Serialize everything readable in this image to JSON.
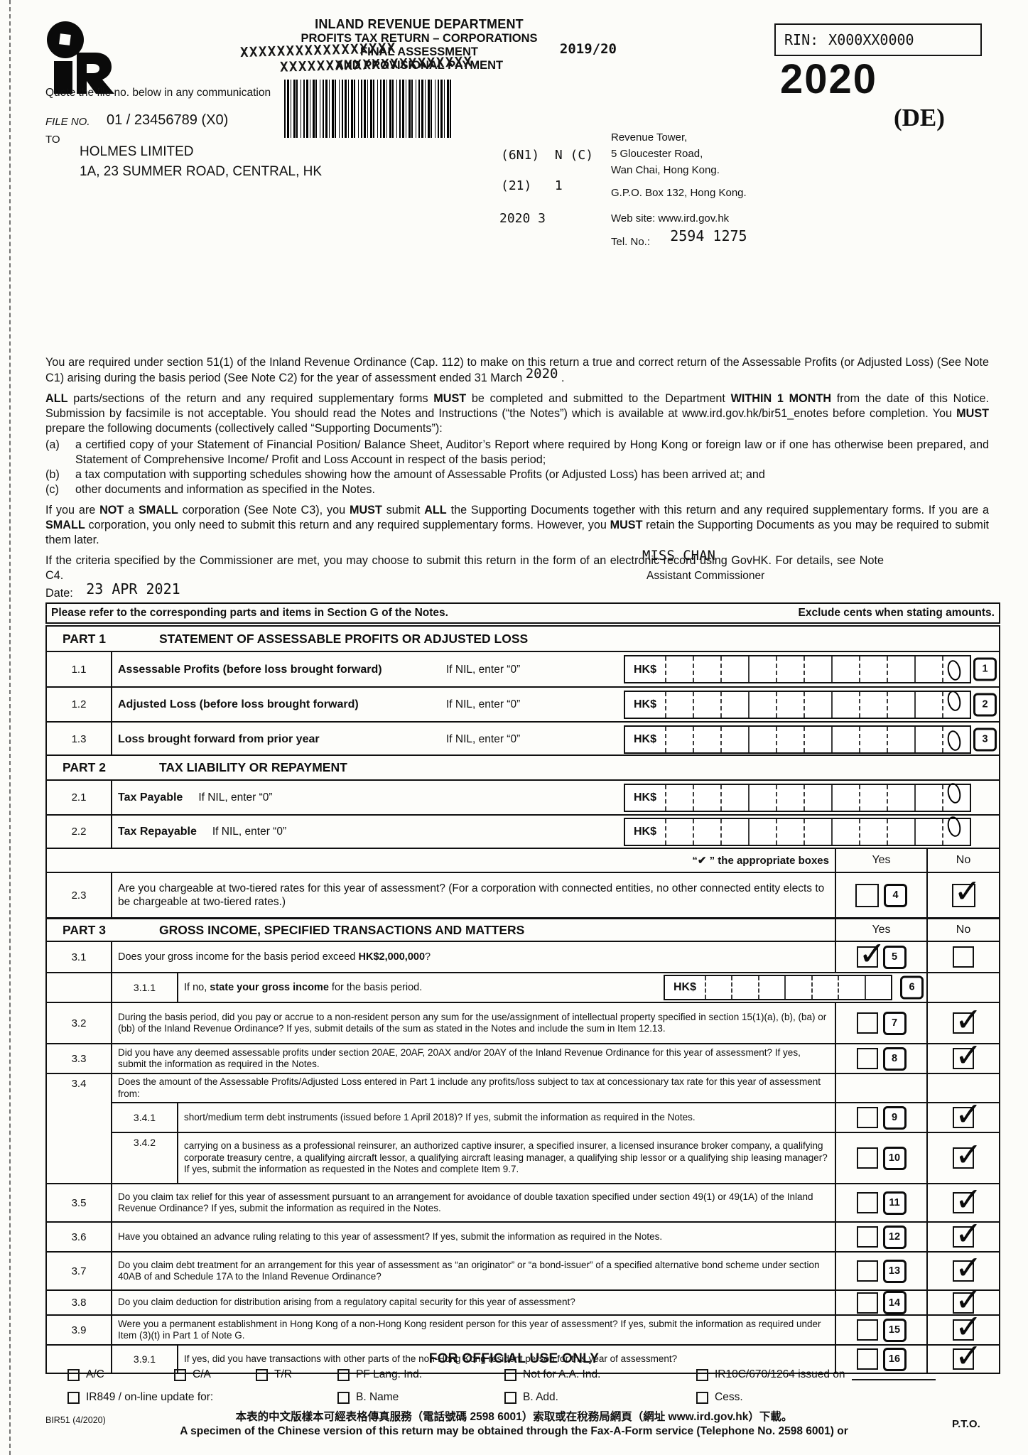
{
  "header": {
    "title1": "INLAND REVENUE DEPARTMENT",
    "title2": "PROFITS TAX RETURN – CORPORATIONS",
    "title3": "FINAL ASSESSMENT",
    "title4": "AND PROVISIONAL PAYMENT",
    "strike1": "XXXXXXXXXXXXXXXXX",
    "strike2": "XXXXXXXXXXXXXXXXXXXXX",
    "typed_period": "2019/20",
    "rin_label": "RIN:",
    "rin_value": "X000XX0000",
    "year_big": "2020",
    "edition": "(DE)",
    "quote_line": "Quote the file no. below in any communication",
    "file_no_label": "FILE NO.",
    "file_no_value": "01 / 23456789 (X0)",
    "to_label": "TO",
    "recipient_name": "HOLMES LIMITED",
    "recipient_address": "1A, 23 SUMMER ROAD, CENTRAL, HK",
    "code1": "(6N1)  N (C)",
    "code2": "(21)   1",
    "code3": "2020 3",
    "ird_address1": "Revenue Tower,",
    "ird_address2": "5 Gloucester Road,",
    "ird_address3": "Wan Chai, Hong Kong.",
    "ird_address4": "G.P.O. Box 132, Hong Kong.",
    "website": "Web site: www.ird.gov.hk",
    "tel_label": "Tel. No.:",
    "tel_value": "2594 1275"
  },
  "intro": {
    "p1": "You are required under section 51(1) of the Inland Revenue Ordinance (Cap. 112) to make on this return a true and correct return of the Assessable Profits (or Adjusted Loss) (See Note C1) arising during the basis period (See Note C2) for the year of assessment ended 31 March",
    "p1_year": "2020",
    "p1_tail": ".",
    "p2": [
      {
        "b": "ALL"
      },
      " parts/sections of the return and any required supplementary forms ",
      {
        "b": "MUST"
      },
      " be completed and submitted to the Department ",
      {
        "b": "WITHIN 1 MONTH"
      },
      " from the date of this Notice.  Submission by facsimile is not acceptable.  You should read the Notes and Instructions (“the Notes”) which is available at www.ird.gov.hk/bir51_enotes before completion.  You ",
      {
        "b": "MUST"
      },
      " prepare the following documents (collectively called “Supporting Documents”):"
    ],
    "item_a_label": "(a)",
    "item_a": "a certified copy of your Statement of Financial Position/ Balance Sheet, Auditor’s Report where required by Hong Kong or foreign law or if one has otherwise been prepared, and Statement of Comprehensive Income/ Profit and Loss Account in respect of the basis period;",
    "item_b_label": "(b)",
    "item_b": "a tax computation with supporting schedules showing how the amount of Assessable Profits (or Adjusted Loss) has been arrived at; and",
    "item_c_label": "(c)",
    "item_c": "other documents and information as specified in the Notes.",
    "p3": [
      "If you are ",
      {
        "b": "NOT"
      },
      " a ",
      {
        "b": "SMALL"
      },
      " corporation (See Note C3), you ",
      {
        "b": "MUST"
      },
      " submit ",
      {
        "b": "ALL"
      },
      " the Supporting Documents together with this return and any required supplementary forms.  If you are a ",
      {
        "b": "SMALL"
      },
      " corporation, you only need to submit this return and any required supplementary forms.  However, you ",
      {
        "b": "MUST"
      },
      " retain the Supporting Documents as you may be required to submit them later."
    ],
    "p4": "If the criteria specified by the Commissioner are met, you may choose to submit this return in the form of an electronic record using GovHK. For details, see Note C4.",
    "date_label": "Date:",
    "date_value": "23 APR 2021",
    "signer_name": "MISS CHAN",
    "signer_title": "Assistant Commissioner"
  },
  "bar": {
    "left": "Please refer to the corresponding parts and items in Section G of the Notes.",
    "right": "Exclude cents when stating amounts."
  },
  "part1": {
    "no": "PART 1",
    "title": "STATEMENT OF ASSESSABLE PROFITS OR ADJUSTED LOSS",
    "currency": "HK$",
    "rows": [
      {
        "num": "1.1",
        "label": "Assessable Profits (before loss brought forward)",
        "note": "If NIL, enter “0”",
        "box_no": "1",
        "value": "0"
      },
      {
        "num": "1.2",
        "label": "Adjusted Loss (before loss brought forward)",
        "note": "If NIL, enter “0”",
        "box_no": "2",
        "value": "0"
      },
      {
        "num": "1.3",
        "label": "Loss brought forward from prior year",
        "note": "If NIL, enter “0”",
        "box_no": "3",
        "value": "0"
      }
    ]
  },
  "part2": {
    "no": "PART 2",
    "title": "TAX LIABILITY OR REPAYMENT",
    "currency": "HK$",
    "rows": [
      {
        "num": "2.1",
        "label": "Tax Payable",
        "note": "If NIL, enter “0”",
        "value": "0"
      },
      {
        "num": "2.2",
        "label": "Tax Repayable",
        "note": "If NIL, enter “0”",
        "value": "0"
      }
    ],
    "tick_note": "“✔ ” the appropriate boxes",
    "yes_label": "Yes",
    "no_label": "No",
    "q23": {
      "num": "2.3",
      "text": "Are you chargeable at two-tiered rates for this year of assessment? (For a corporation with connected entities, no other connected entity elects to be chargeable at two-tiered rates.)",
      "box_no": "4",
      "yes_checked": false,
      "no_checked": true
    }
  },
  "part3": {
    "no": "PART 3",
    "title": "GROSS INCOME, SPECIFIED TRANSACTIONS AND MATTERS",
    "yes_label": "Yes",
    "no_label": "No",
    "currency": "HK$",
    "q31": {
      "num": "3.1",
      "text": [
        "Does your gross income for the basis period exceed ",
        {
          "b": "HK$2,000,000"
        },
        "?"
      ],
      "box_no": "5",
      "yes_checked": true,
      "no_checked": false
    },
    "q311": {
      "num": "3.1.1",
      "text": [
        "If no, ",
        {
          "b": "state your gross income"
        },
        " for the basis period."
      ],
      "box_no": "6"
    },
    "q32": {
      "num": "3.2",
      "text": "During the basis period, did you pay or accrue to a non-resident person any sum for the use/assignment of intellectual property specified in section 15(1)(a), (b), (ba) or (bb) of the Inland Revenue Ordinance? If yes, submit details of the sum as stated in the Notes and include the sum in Item 12.13.",
      "box_no": "7",
      "yes_checked": false,
      "no_checked": true
    },
    "q33": {
      "num": "3.3",
      "text": "Did you have any deemed assessable profits under section 20AE, 20AF, 20AX and/or 20AY of the Inland Revenue Ordinance for this year of assessment?  If yes, submit the information as required in the Notes.",
      "box_no": "8",
      "yes_checked": false,
      "no_checked": true
    },
    "q34": {
      "num": "3.4",
      "text": "Does the amount of the Assessable Profits/Adjusted Loss entered in Part 1 include any profits/loss subject to tax at concessionary tax rate for this year of assessment from:"
    },
    "q341": {
      "num": "3.4.1",
      "text": "short/medium term debt instruments (issued before 1 April 2018)? If yes, submit the information as required in the Notes.",
      "box_no": "9",
      "yes_checked": false,
      "no_checked": true
    },
    "q342": {
      "num": "3.4.2",
      "text": "carrying on a business as a professional reinsurer,  an authorized captive insurer, a specified insurer, a licensed insurance broker company, a qualifying corporate treasury centre, a qualifying aircraft lessor, a qualifying aircraft leasing manager, a qualifying ship lessor or a qualifying ship leasing manager? If yes, submit the information as requested in the Notes and complete Item 9.7.",
      "box_no": "10",
      "yes_checked": false,
      "no_checked": true
    },
    "q35": {
      "num": "3.5",
      "text": "Do you claim tax relief for this year of assessment pursuant to an arrangement for avoidance of double taxation specified under section 49(1) or 49(1A) of the Inland Revenue Ordinance? If yes, submit the information as required in the Notes.",
      "box_no": "11",
      "yes_checked": false,
      "no_checked": true
    },
    "q36": {
      "num": "3.6",
      "text": "Have you obtained an advance ruling relating to this year of assessment? If yes, submit the information as required in the Notes.",
      "box_no": "12",
      "yes_checked": false,
      "no_checked": true
    },
    "q37": {
      "num": "3.7",
      "text": "Do you claim debt treatment for an arrangement for this year of assessment as “an originator” or “a bond-issuer” of a specified alternative bond scheme under section 40AB of and Schedule 17A to the Inland Revenue Ordinance?",
      "box_no": "13",
      "yes_checked": false,
      "no_checked": true
    },
    "q38": {
      "num": "3.8",
      "text": "Do you claim deduction for distribution arising from a regulatory capital security for this year of assessment?",
      "box_no": "14",
      "yes_checked": false,
      "no_checked": true
    },
    "q39": {
      "num": "3.9",
      "text": "Were you a permanent establishment in Hong Kong of a non-Hong Kong resident person for this year of assessment?  If yes, submit the information as required under Item (3)(t) in Part 1 of Note G.",
      "box_no": "15",
      "yes_checked": false,
      "no_checked": true
    },
    "q391": {
      "num": "3.9.1",
      "text": "If yes, did you have transactions with other parts of the non-Hong Kong resident person for this year of assessment?",
      "box_no": "16",
      "yes_checked": false,
      "no_checked": true
    }
  },
  "official": {
    "title": "FOR OFFICIAL USE ONLY",
    "row1": [
      "A/C",
      "C/A",
      "T/R",
      "PF Lang. Ind.",
      "Not for A.A. Ind.",
      "IR10C/670/1264 issued on"
    ],
    "row2": [
      "IR849 / on-line update for:",
      "B. Name",
      "B. Add.",
      "Cess."
    ]
  },
  "footer": {
    "form_code": "BIR51 (4/2020)",
    "chinese": "本表的中文版樣本可經表格傳真服務（電話號碼 2598 6001）索取或在稅務局網頁（網址 www.ird.gov.hk）下載。",
    "english": "A specimen of the Chinese version of this return may be obtained through the Fax-A-Form service (Telephone No. 2598 6001) or",
    "pto": "P.T.O."
  }
}
